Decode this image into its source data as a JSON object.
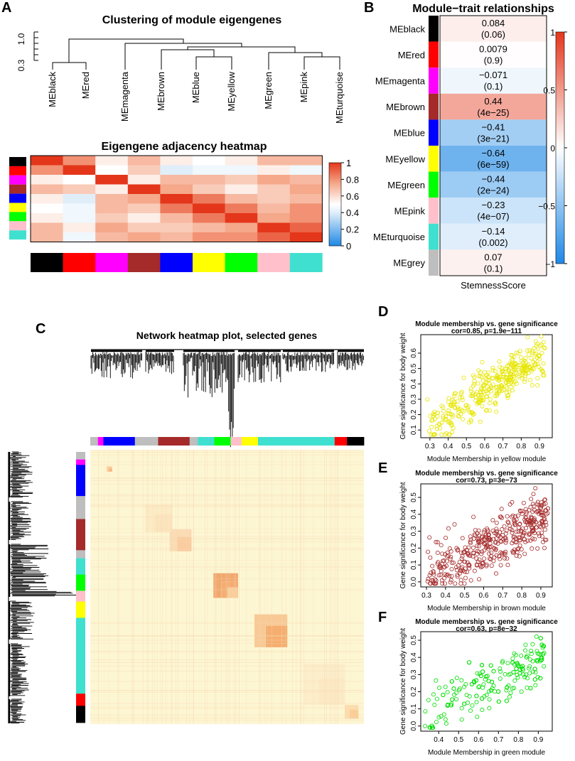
{
  "panels": {
    "a": "A",
    "b": "B",
    "c": "C",
    "d": "D",
    "e": "E",
    "f": "F"
  },
  "module_colors": {
    "black": "#000000",
    "red": "#FF0000",
    "magenta": "#FF00FF",
    "brown": "#A52A2A",
    "blue": "#0000FF",
    "yellow": "#FFFF00",
    "green": "#00FF00",
    "pink": "#FFC0CB",
    "turquoise": "#40E0D0",
    "grey": "#BEBEBE"
  },
  "dendrogram": {
    "title": "Clustering of module eigengenes",
    "axis_ticks": [
      "0.3",
      "1.0"
    ],
    "leaves": [
      "MEblack",
      "MEred",
      "MEmagenta",
      "MEbrown",
      "MEblue",
      "MEyellow",
      "MEgreen",
      "MEpink",
      "MEturquoise"
    ],
    "leaf_colors": [
      "black",
      "red",
      "magenta",
      "brown",
      "blue",
      "yellow",
      "green",
      "pink",
      "turquoise"
    ]
  },
  "adjacency": {
    "title": "Eigengene adjacency heatmap",
    "legend_ticks": [
      "1",
      "0.8",
      "0.6",
      "0.4",
      "0.2",
      "0"
    ],
    "matrix": [
      [
        1.0,
        0.8,
        0.55,
        0.7,
        0.55,
        0.5,
        0.55,
        0.7,
        0.7
      ],
      [
        0.8,
        1.0,
        0.5,
        0.65,
        0.4,
        0.45,
        0.45,
        0.55,
        0.45
      ],
      [
        0.55,
        0.5,
        1.0,
        0.55,
        0.7,
        0.7,
        0.65,
        0.75,
        0.7
      ],
      [
        0.7,
        0.65,
        0.55,
        1.0,
        0.75,
        0.65,
        0.55,
        0.65,
        0.75
      ],
      [
        0.55,
        0.4,
        0.7,
        0.75,
        1.0,
        0.85,
        0.7,
        0.65,
        0.7
      ],
      [
        0.5,
        0.45,
        0.7,
        0.65,
        0.85,
        1.0,
        0.85,
        0.7,
        0.8
      ],
      [
        0.55,
        0.45,
        0.65,
        0.55,
        0.7,
        0.85,
        1.0,
        0.75,
        0.8
      ],
      [
        0.7,
        0.55,
        0.75,
        0.65,
        0.65,
        0.7,
        0.75,
        1.0,
        0.9
      ],
      [
        0.7,
        0.45,
        0.7,
        0.75,
        0.7,
        0.8,
        0.8,
        0.9,
        1.0
      ]
    ]
  },
  "trait": {
    "title": "Module−trait relationships",
    "xlabel": "StemnessScore",
    "legend_ticks": [
      "1",
      "0.5",
      "0",
      "−0.5",
      "−1"
    ],
    "rows": [
      {
        "module": "MEblack",
        "color": "black",
        "cor": 0.084,
        "cor_label": "0.084",
        "p_label": "(0.06)"
      },
      {
        "module": "MEred",
        "color": "red",
        "cor": 0.0079,
        "cor_label": "0.0079",
        "p_label": "(0.9)"
      },
      {
        "module": "MEmagenta",
        "color": "magenta",
        "cor": -0.071,
        "cor_label": "−0.071",
        "p_label": "(0.1)"
      },
      {
        "module": "MEbrown",
        "color": "brown",
        "cor": 0.44,
        "cor_label": "0.44",
        "p_label": "(4e−25)"
      },
      {
        "module": "MEblue",
        "color": "blue",
        "cor": -0.41,
        "cor_label": "−0.41",
        "p_label": "(3e−21)"
      },
      {
        "module": "MEyellow",
        "color": "yellow",
        "cor": -0.64,
        "cor_label": "−0.64",
        "p_label": "(6e−59)"
      },
      {
        "module": "MEgreen",
        "color": "green",
        "cor": -0.44,
        "cor_label": "−0.44",
        "p_label": "(2e−24)"
      },
      {
        "module": "MEpink",
        "color": "pink",
        "cor": -0.23,
        "cor_label": "−0.23",
        "p_label": "(4e−07)"
      },
      {
        "module": "MEturquoise",
        "color": "turquoise",
        "cor": -0.14,
        "cor_label": "−0.14",
        "p_label": "(0.002)"
      },
      {
        "module": "MEgrey",
        "color": "grey",
        "cor": 0.07,
        "cor_label": "0.07",
        "p_label": "(0.1)"
      }
    ]
  },
  "network": {
    "title": "Network heatmap plot, selected genes",
    "module_order": [
      "grey",
      "magenta",
      "blue",
      "grey",
      "brown",
      "grey",
      "turquoise",
      "green",
      "pink",
      "yellow",
      "turquoise",
      "red",
      "black"
    ]
  },
  "chart_data": [
    {
      "type": "scatter",
      "panel": "D",
      "module": "yellow",
      "color": "#E6E600",
      "title": "Module membership vs. gene significance",
      "subtitle": "cor=0.85, p=1.9e−111",
      "xlabel": "Module Membership in yellow module",
      "ylabel": "Gene significance for body weight",
      "xlim": [
        0.25,
        0.97
      ],
      "ylim": [
        0.05,
        0.72
      ],
      "xticks": [
        "0.3",
        "0.4",
        "0.5",
        "0.6",
        "0.7",
        "0.8",
        "0.9"
      ],
      "xtick_values": [
        0.3,
        0.4,
        0.5,
        0.6,
        0.7,
        0.8,
        0.9
      ],
      "yticks": [
        "0.1",
        "0.2",
        "0.3",
        "0.4",
        "0.5",
        "0.6"
      ],
      "ytick_values": [
        0.1,
        0.2,
        0.3,
        0.4,
        0.5,
        0.6
      ],
      "n": 380,
      "slope": 0.75,
      "intercept": -0.1,
      "noise": 0.07,
      "x_range": [
        0.28,
        0.93
      ],
      "seed": 11
    },
    {
      "type": "scatter",
      "panel": "E",
      "module": "brown",
      "color": "#A52A2A",
      "title": "Module membership vs. gene significance",
      "subtitle": "cor=0.73, p=3e−73",
      "xlabel": "Module Membership in brown module",
      "ylabel": "Gene significance for body weight",
      "xlim": [
        0.27,
        0.96
      ],
      "ylim": [
        -0.03,
        0.58
      ],
      "xticks": [
        "0.3",
        "0.4",
        "0.5",
        "0.6",
        "0.7",
        "0.8",
        "0.9"
      ],
      "xtick_values": [
        0.3,
        0.4,
        0.5,
        0.6,
        0.7,
        0.8,
        0.9
      ],
      "yticks": [
        "0.0",
        "0.1",
        "0.2",
        "0.3",
        "0.4",
        "0.5"
      ],
      "ytick_values": [
        0.0,
        0.1,
        0.2,
        0.3,
        0.4,
        0.5
      ],
      "n": 420,
      "slope": 0.55,
      "intercept": -0.12,
      "noise": 0.08,
      "x_range": [
        0.3,
        0.94
      ],
      "seed": 23
    },
    {
      "type": "scatter",
      "panel": "F",
      "module": "green",
      "color": "#00DD00",
      "title": "Module membership vs. gene significance",
      "subtitle": "cor=0.63, p=8e−32",
      "xlabel": "Module Membership in green module",
      "ylabel": "Gene significance for body weight",
      "xlim": [
        0.31,
        0.97
      ],
      "ylim": [
        -0.03,
        0.55
      ],
      "xticks": [
        "0.4",
        "0.5",
        "0.6",
        "0.7",
        "0.8",
        "0.9"
      ],
      "xtick_values": [
        0.4,
        0.5,
        0.6,
        0.7,
        0.8,
        0.9
      ],
      "yticks": [
        "0.0",
        "0.1",
        "0.2",
        "0.3",
        "0.4",
        "0.5"
      ],
      "ytick_values": [
        0.0,
        0.1,
        0.2,
        0.3,
        0.4,
        0.5
      ],
      "n": 280,
      "slope": 0.62,
      "intercept": -0.18,
      "noise": 0.08,
      "x_range": [
        0.33,
        0.93
      ],
      "seed": 37
    }
  ]
}
